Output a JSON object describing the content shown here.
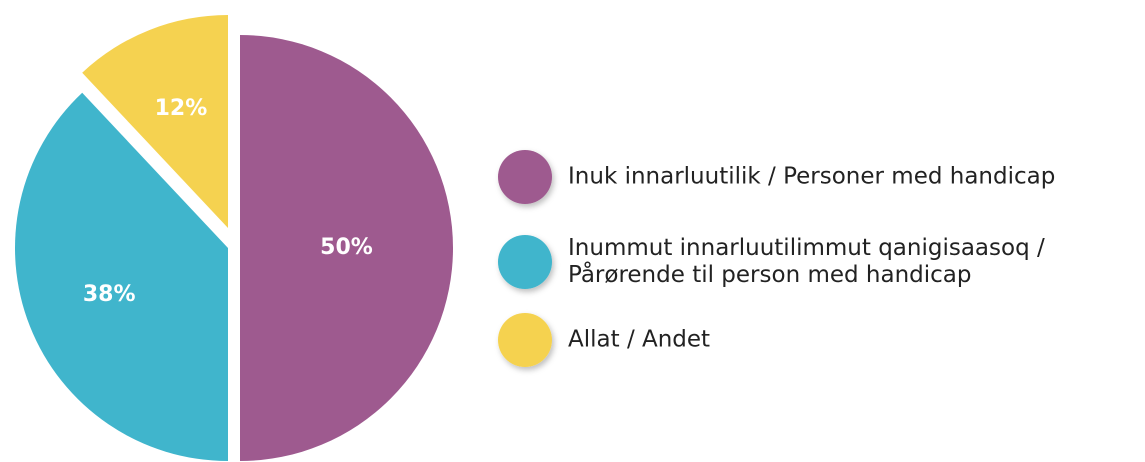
{
  "chart_data": {
    "type": "pie",
    "categories": [
      "Inuk innarluutilik / Personer med handicap",
      "Inummut innarluutilimmut qanigisaasoq /\nPårørende til person med handicap",
      "Allat / Andet"
    ],
    "values": [
      50,
      38,
      12
    ],
    "value_labels": [
      "50%",
      "38%",
      "12%"
    ],
    "colors": [
      "#9e5a8f",
      "#40b5cc",
      "#f5d250"
    ],
    "legend": "right"
  }
}
